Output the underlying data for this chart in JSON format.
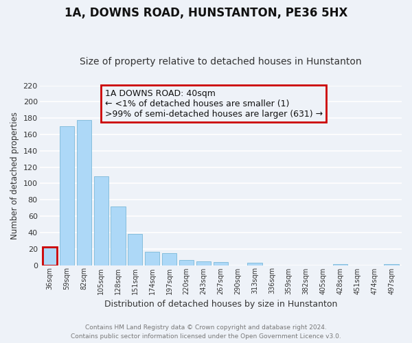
{
  "title": "1A, DOWNS ROAD, HUNSTANTON, PE36 5HX",
  "subtitle": "Size of property relative to detached houses in Hunstanton",
  "xlabel": "Distribution of detached houses by size in Hunstanton",
  "ylabel": "Number of detached properties",
  "footer_line1": "Contains HM Land Registry data © Crown copyright and database right 2024.",
  "footer_line2": "Contains public sector information licensed under the Open Government Licence v3.0.",
  "bar_labels": [
    "36sqm",
    "59sqm",
    "82sqm",
    "105sqm",
    "128sqm",
    "151sqm",
    "174sqm",
    "197sqm",
    "220sqm",
    "243sqm",
    "267sqm",
    "290sqm",
    "313sqm",
    "336sqm",
    "359sqm",
    "382sqm",
    "405sqm",
    "428sqm",
    "451sqm",
    "474sqm",
    "497sqm"
  ],
  "bar_values": [
    22,
    170,
    178,
    109,
    72,
    38,
    16,
    15,
    6,
    5,
    4,
    0,
    3,
    0,
    0,
    0,
    0,
    1,
    0,
    0,
    1
  ],
  "bar_color": "#add8f7",
  "bar_edge_color": "#7ab8d8",
  "highlight_bar_index": 0,
  "highlight_color": "#cc0000",
  "ylim": [
    0,
    220
  ],
  "yticks": [
    0,
    20,
    40,
    60,
    80,
    100,
    120,
    140,
    160,
    180,
    200,
    220
  ],
  "annotation_title": "1A DOWNS ROAD: 40sqm",
  "annotation_line1": "← <1% of detached houses are smaller (1)",
  "annotation_line2": ">99% of semi-detached houses are larger (631) →",
  "annotation_box_color": "#cc0000",
  "background_color": "#eef2f8",
  "grid_color": "#ffffff",
  "title_fontsize": 12,
  "subtitle_fontsize": 10,
  "annotation_fontsize": 9
}
